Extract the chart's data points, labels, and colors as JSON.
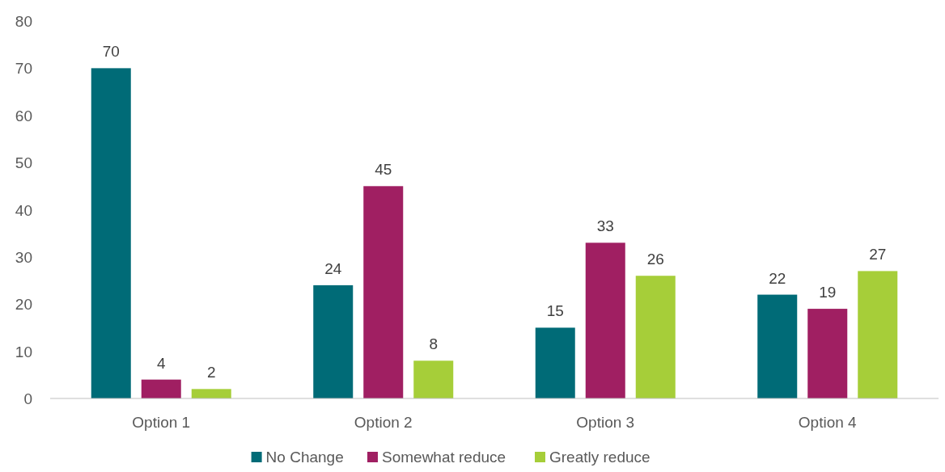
{
  "chart_data": {
    "type": "bar",
    "categories": [
      "Option 1",
      "Option 2",
      "Option 3",
      "Option 4"
    ],
    "series": [
      {
        "name": "No Change",
        "color": "#006b77",
        "values": [
          70,
          24,
          15,
          22
        ]
      },
      {
        "name": "Somewhat reduce",
        "color": "#a01f62",
        "values": [
          4,
          45,
          33,
          19
        ]
      },
      {
        "name": "Greatly reduce",
        "color": "#a6ce39",
        "values": [
          2,
          8,
          26,
          27
        ]
      }
    ],
    "ylim": [
      0,
      80
    ],
    "yticks": [
      0,
      10,
      20,
      30,
      40,
      50,
      60,
      70,
      80
    ],
    "grid": false,
    "legend": "bottom",
    "data_labels": true
  }
}
